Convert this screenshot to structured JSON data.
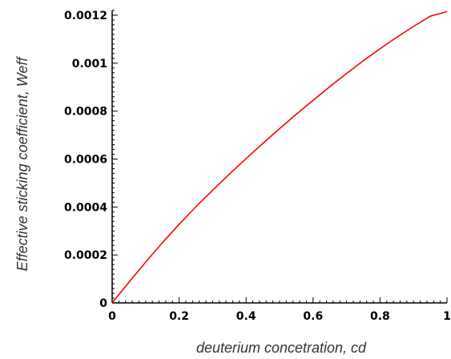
{
  "chart_data": {
    "type": "line",
    "title": "",
    "xlabel": "deuterium concetration, cd",
    "ylabel": "Effective sticking coefficient, Weff",
    "xlim": [
      0,
      1
    ],
    "ylim": [
      0,
      0.00122
    ],
    "xticks": [
      0,
      0.2,
      0.4,
      0.6,
      0.8,
      1
    ],
    "xtick_labels": [
      "0",
      "0.2",
      "0.4",
      "0.6",
      "0.8",
      "1"
    ],
    "yticks": [
      0,
      0.0002,
      0.0004,
      0.0006,
      0.0008,
      0.001,
      0.0012
    ],
    "ytick_labels": [
      "0",
      "0.0002",
      "0.0004",
      "0.0006",
      "0.0008",
      "0.001",
      "0.0012"
    ],
    "grid": false,
    "legend": "none",
    "line_color": "#ff0000",
    "series": [
      {
        "x": [
          0,
          0.05,
          0.1,
          0.15,
          0.2,
          0.25,
          0.3,
          0.35,
          0.4,
          0.45,
          0.5,
          0.55,
          0.6,
          0.65,
          0.7,
          0.75,
          0.8,
          0.85,
          0.9,
          0.95,
          1
        ],
        "y": [
          0,
          8.6e-05,
          0.00017,
          0.000251,
          0.000328,
          0.000401,
          0.00047,
          0.000537,
          0.000602,
          0.000665,
          0.000727,
          0.000787,
          0.000845,
          0.000902,
          0.000957,
          0.00101,
          0.00106,
          0.001108,
          0.001153,
          0.001196,
          0.001215
        ]
      }
    ]
  }
}
